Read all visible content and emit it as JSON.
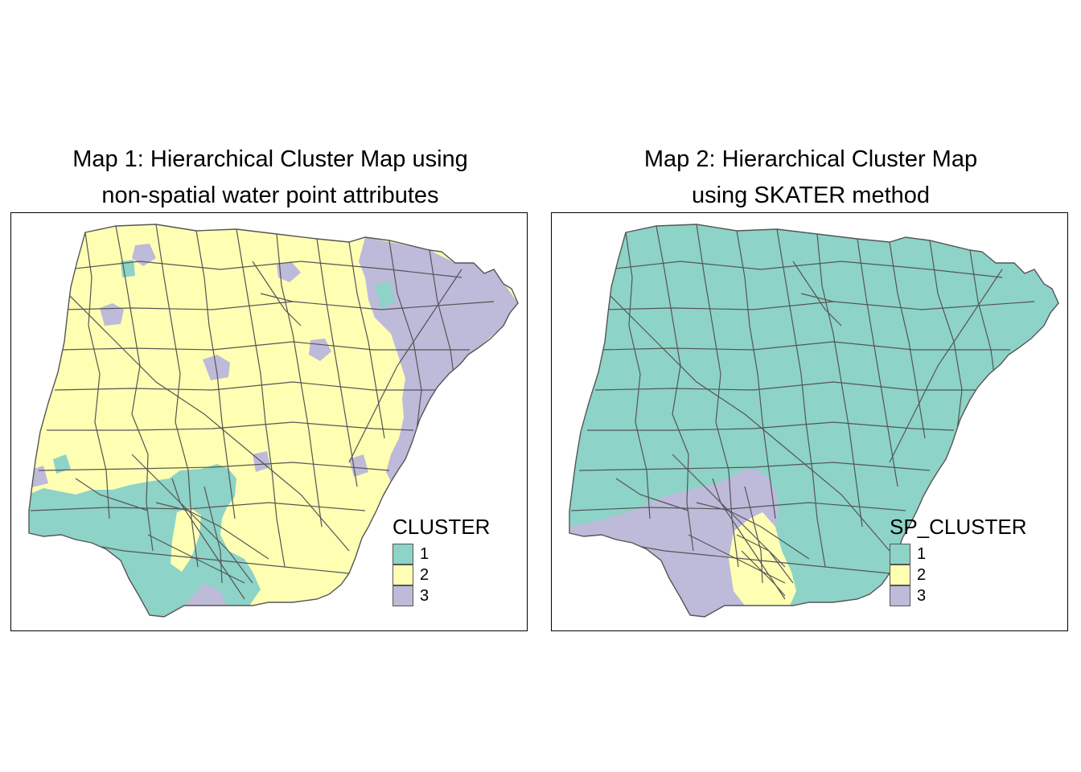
{
  "colors": {
    "cluster_1": "#8dd3c7",
    "cluster_2": "#ffffb3",
    "cluster_3": "#bebada",
    "borders": "#555555",
    "frame": "#000000"
  },
  "maps": [
    {
      "title_line1": "Map 1: Hierarchical Cluster Map using",
      "title_line2": "non-spatial water point attributes",
      "legend": {
        "title": "CLUSTER",
        "items": [
          {
            "label": "1",
            "color": "#8dd3c7"
          },
          {
            "label": "2",
            "color": "#ffffb3"
          },
          {
            "label": "3",
            "color": "#bebada"
          }
        ]
      }
    },
    {
      "title_line1": "Map 2: Hierarchical Cluster Map",
      "title_line2": "using SKATER method",
      "legend": {
        "title": "SP_CLUSTER",
        "items": [
          {
            "label": "1",
            "color": "#8dd3c7"
          },
          {
            "label": "2",
            "color": "#ffffb3"
          },
          {
            "label": "3",
            "color": "#bebada"
          }
        ]
      }
    }
  ]
}
